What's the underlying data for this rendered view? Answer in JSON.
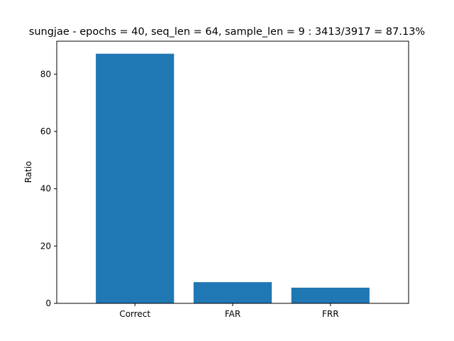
{
  "chart_data": {
    "type": "bar",
    "title": "sungjae - epochs = 40, seq_len = 64, sample_len = 9 : 3413/3917 = 87.13%",
    "xlabel": "",
    "ylabel": "Ratio",
    "categories": [
      "Correct",
      "FAR",
      "FRR"
    ],
    "values": [
      87.13,
      7.4,
      5.47
    ],
    "ylim": [
      0,
      91.5
    ],
    "yticks": [
      0,
      20,
      40,
      60,
      80
    ],
    "bar_color": "#1f77b4",
    "grid": false,
    "legend": "none"
  }
}
